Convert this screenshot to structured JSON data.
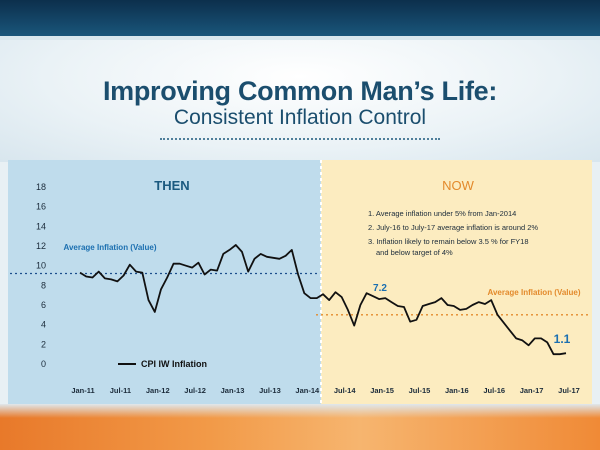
{
  "header": {
    "title": "Improving Common Man’s Life:",
    "subtitle": "Consistent Inflation Control"
  },
  "colors": {
    "then_bg": "#bfdcec",
    "now_bg": "#fcecc0",
    "line": "#111111",
    "then_label": "#1b5a80",
    "now_label": "#e38a2c",
    "avg_then_line": "#1b4e8c",
    "avg_now_line": "#e38a2c"
  },
  "chart_data": {
    "type": "line",
    "title": "",
    "xlabel": "",
    "ylabel": "",
    "ylim": [
      0,
      18
    ],
    "yticks": [
      "0",
      "2",
      "4",
      "6",
      "8",
      "10",
      "12",
      "14",
      "16",
      "18"
    ],
    "xticks": [
      "Jan-11",
      "Jul-11",
      "Jan-12",
      "Jul-12",
      "Jan-13",
      "Jul-13",
      "Jan-14",
      "Jul-14",
      "Jan-15",
      "Jul-15",
      "Jan-16",
      "Jul-16",
      "Jan-17",
      "Jul-17"
    ],
    "grid": false,
    "legend": {
      "position": "bottom-left",
      "label": "CPI IW Inflation"
    },
    "panels": [
      {
        "label": "THEN",
        "from": "Jan-11",
        "to": "Mar-14"
      },
      {
        "label": "NOW",
        "from": "Mar-14",
        "to": "Jul-17"
      }
    ],
    "average_lines": [
      {
        "label": "Average Inflation (Value)",
        "value": 9.2,
        "from": "Jan-11",
        "to": "Mar-14"
      },
      {
        "label": "Average Inflation (Value)",
        "value": 5.0,
        "from": "Mar-14",
        "to": "Jul-17"
      }
    ],
    "annotations": [
      {
        "text": "7.2",
        "x": "Nov-14",
        "y": 7.2
      },
      {
        "text": "1.1",
        "x": "Jun-17",
        "y": 1.1
      }
    ],
    "notes": [
      "1. Average inflation under 5% from Jan-2014",
      "2. July-16 to July-17 average inflation is around 2%",
      "3. Inflation likely to remain below 3.5 % for FY18",
      "and below target of 4%"
    ],
    "series": [
      {
        "name": "CPI IW Inflation",
        "x": [
          "2011-01",
          "2011-02",
          "2011-03",
          "2011-04",
          "2011-05",
          "2011-06",
          "2011-07",
          "2011-08",
          "2011-09",
          "2011-10",
          "2011-11",
          "2011-12",
          "2012-01",
          "2012-02",
          "2012-03",
          "2012-04",
          "2012-05",
          "2012-06",
          "2012-07",
          "2012-08",
          "2012-09",
          "2012-10",
          "2012-11",
          "2012-12",
          "2013-01",
          "2013-02",
          "2013-03",
          "2013-04",
          "2013-05",
          "2013-06",
          "2013-07",
          "2013-08",
          "2013-09",
          "2013-10",
          "2013-11",
          "2013-12",
          "2014-01",
          "2014-02",
          "2014-03",
          "2014-04",
          "2014-05",
          "2014-06",
          "2014-07",
          "2014-08",
          "2014-09",
          "2014-10",
          "2014-11",
          "2014-12",
          "2015-01",
          "2015-02",
          "2015-03",
          "2015-04",
          "2015-05",
          "2015-06",
          "2015-07",
          "2015-08",
          "2015-09",
          "2015-10",
          "2015-11",
          "2015-12",
          "2016-01",
          "2016-02",
          "2016-03",
          "2016-04",
          "2016-05",
          "2016-06",
          "2016-07",
          "2016-08",
          "2016-09",
          "2016-10",
          "2016-11",
          "2016-12",
          "2017-01",
          "2017-02",
          "2017-03",
          "2017-04",
          "2017-05",
          "2017-06",
          "2017-07"
        ],
        "values": [
          9.3,
          8.9,
          8.8,
          9.4,
          8.7,
          8.6,
          8.4,
          9.0,
          10.1,
          9.4,
          9.3,
          6.5,
          5.3,
          7.6,
          8.8,
          10.2,
          10.2,
          10.0,
          9.8,
          10.3,
          9.1,
          9.6,
          9.5,
          11.2,
          11.6,
          12.1,
          11.4,
          9.4,
          10.7,
          11.2,
          10.9,
          10.8,
          10.7,
          11.0,
          11.6,
          9.1,
          7.2,
          6.7,
          6.7,
          7.1,
          6.5,
          7.3,
          6.8,
          5.5,
          3.9,
          6.0,
          7.2,
          6.9,
          6.6,
          6.7,
          6.3,
          5.9,
          5.8,
          4.3,
          4.5,
          5.9,
          6.1,
          6.3,
          6.7,
          6.0,
          5.9,
          5.5,
          5.6,
          6.0,
          6.3,
          6.1,
          6.5,
          5.0,
          4.2,
          3.4,
          2.6,
          2.4,
          1.9,
          2.6,
          2.6,
          2.2,
          1.0,
          1.0,
          1.1
        ]
      }
    ]
  }
}
